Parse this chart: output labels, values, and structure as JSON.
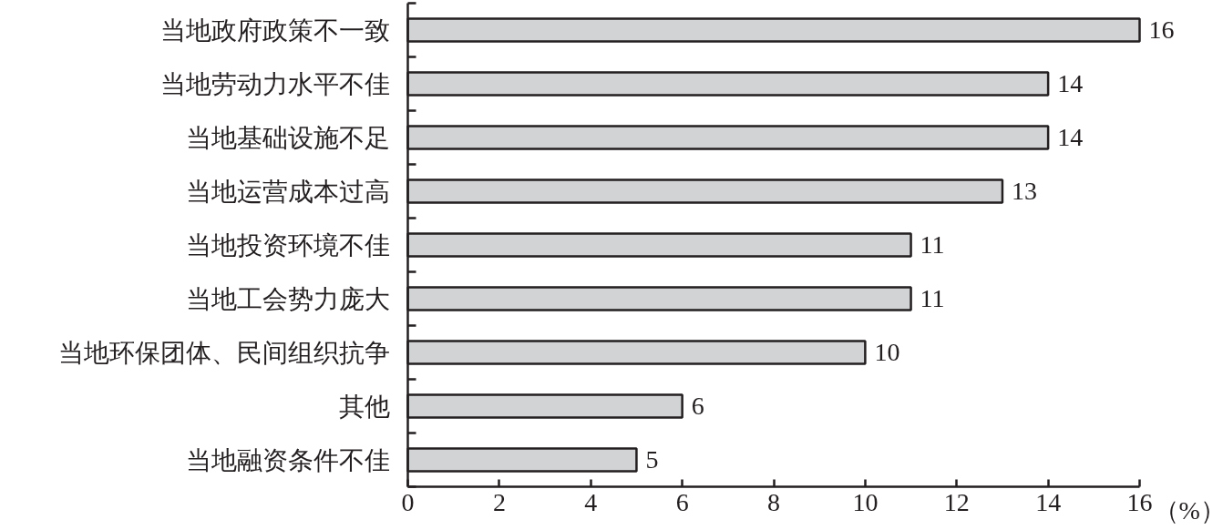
{
  "chart_data": {
    "type": "bar",
    "orientation": "horizontal",
    "categories": [
      "当地政府政策不一致",
      "当地劳动力水平不佳",
      "当地基础设施不足",
      "当地运营成本过高",
      "当地投资环境不佳",
      "当地工会势力庞大",
      "当地环保团体、民间组织抗争",
      "其他",
      "当地融资条件不佳"
    ],
    "values": [
      16,
      14,
      14,
      13,
      11,
      11,
      10,
      6,
      5
    ],
    "color": "#d2d3d5",
    "xlim": [
      0,
      16
    ],
    "xticks": [
      0,
      2,
      4,
      6,
      8,
      10,
      12,
      14,
      16
    ],
    "xlabel": "（%）",
    "data_labels": true
  }
}
